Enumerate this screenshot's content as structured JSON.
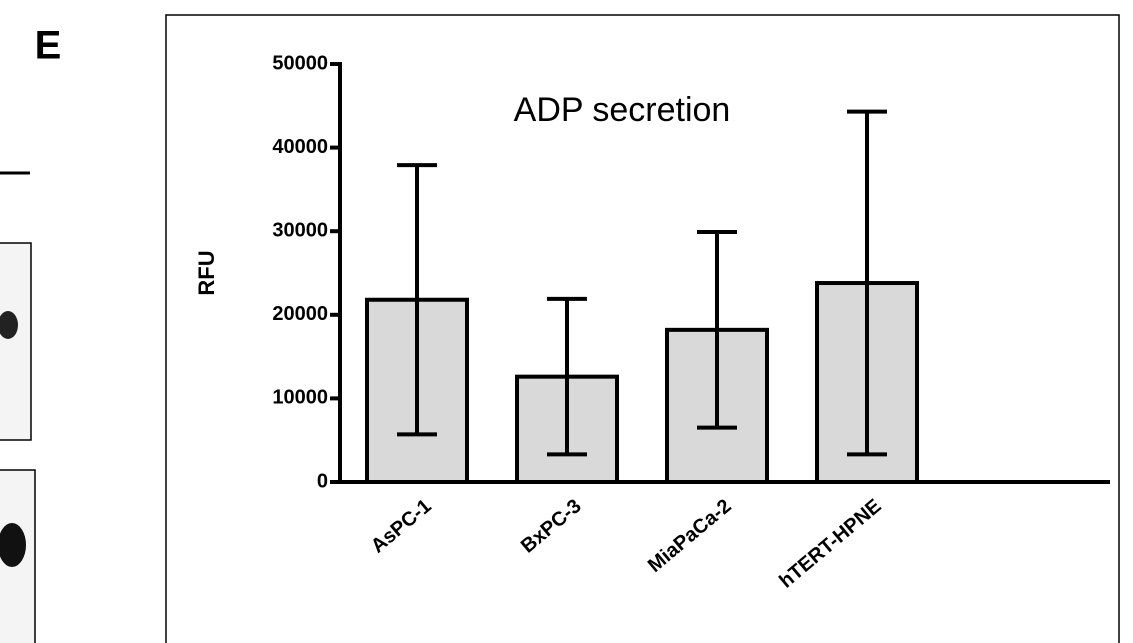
{
  "panel_label": "E",
  "chart_data": {
    "type": "bar",
    "title": "ADP secretion",
    "y_label": "RFU",
    "categories": [
      "AsPC-1",
      "BxPC-3",
      "MiaPaCa-2",
      "hTERT-HPNE"
    ],
    "values": [
      21800,
      12600,
      18200,
      23800
    ],
    "errors": [
      16100,
      9300,
      11700,
      20500
    ],
    "color": "#d9d9d9",
    "ylim": [
      0,
      50000
    ],
    "yticks": [
      0,
      10000,
      20000,
      30000,
      40000,
      50000
    ]
  }
}
